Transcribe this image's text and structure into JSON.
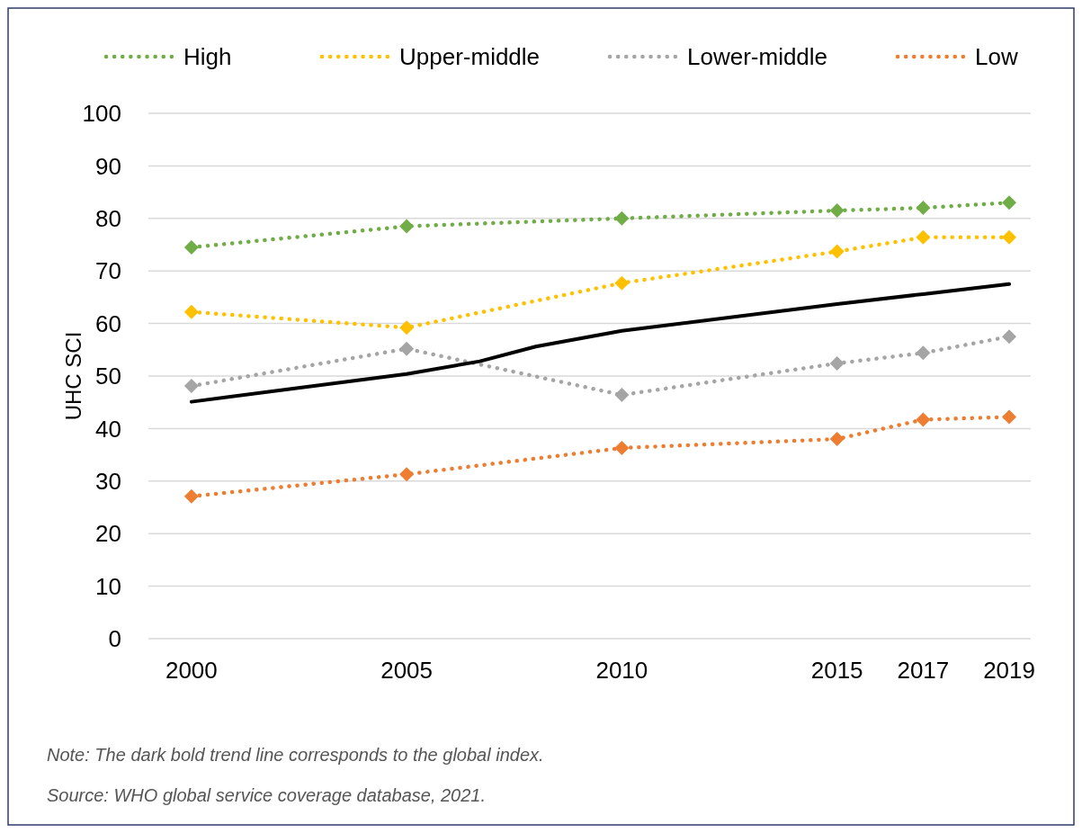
{
  "chart_data": {
    "type": "line",
    "ylabel": "UHC SCI",
    "xlim": [
      1999,
      2019.5
    ],
    "xticks": [
      2000,
      2005,
      2010,
      2015,
      2017,
      2019
    ],
    "ylim": [
      0,
      100
    ],
    "yticks": [
      0,
      10,
      20,
      30,
      40,
      50,
      60,
      70,
      80,
      90,
      100
    ],
    "grid": "y",
    "legend": "top",
    "tick_labels": "xy",
    "x": [
      2000,
      2005,
      2010,
      2015,
      2017,
      2019
    ],
    "series": [
      {
        "name": "High",
        "color": "#70ad47",
        "marker": "diamond",
        "line_style": "dotted",
        "values": [
          74.5,
          78.5,
          80,
          81.5,
          82,
          83
        ]
      },
      {
        "name": "Upper-middle",
        "color": "#ffc000",
        "marker": "diamond",
        "line_style": "dotted",
        "values": [
          62.2,
          59.2,
          67.7,
          73.7,
          76.4,
          76.4
        ]
      },
      {
        "name": "Lower-middle",
        "color": "#a5a5a5",
        "marker": "diamond",
        "line_style": "dotted",
        "values": [
          48.1,
          55.2,
          46.4,
          52.4,
          54.4,
          57.5
        ]
      },
      {
        "name": "Low",
        "color": "#ed7d31",
        "marker": "diamond",
        "line_style": "dotted",
        "values": [
          27.1,
          31.3,
          36.3,
          38,
          41.7,
          42.2
        ]
      },
      {
        "color": "#000000",
        "marker": "none",
        "line_style": "solid",
        "x": [
          2000,
          2005,
          2006.7,
          2008,
          2010,
          2015,
          2017,
          2019
        ],
        "values": [
          45.1,
          50.4,
          52.8,
          55.6,
          58.6,
          63.7,
          65.6,
          67.5
        ]
      }
    ],
    "annotations": [
      "Note: The dark bold trend line corresponds to the global index.",
      "Source: WHO global service coverage database, 2021."
    ]
  }
}
